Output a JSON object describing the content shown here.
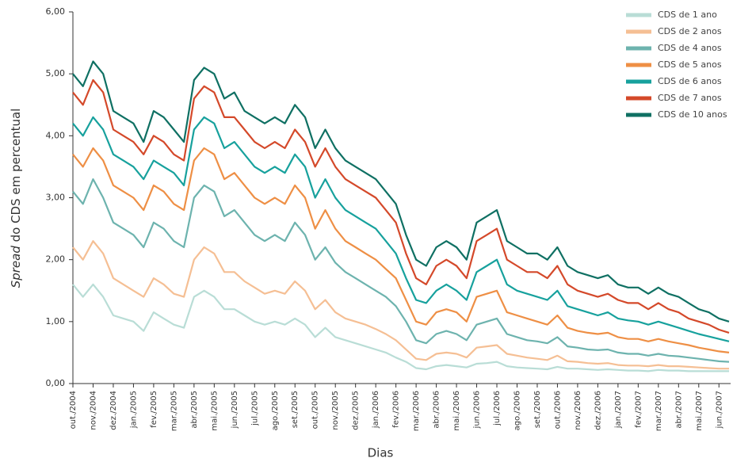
{
  "chart_data": {
    "type": "line",
    "y_label_italic": "Spread",
    "y_label": " do CDS em percentual",
    "x_label": "Dias",
    "categories": [
      "out./2004",
      null,
      "nov./2004",
      null,
      "dez./2004",
      null,
      "jan./2005",
      null,
      "fev./2005",
      null,
      "mar./2005",
      null,
      "abr./2005",
      null,
      "mai./2005",
      null,
      "jun./2005",
      null,
      "jul./2005",
      null,
      "ago./2005",
      null,
      "set./2005",
      null,
      "out./2005",
      null,
      "nov./2005",
      null,
      "dez./2005",
      null,
      "jan./2006",
      null,
      "fev./2006",
      null,
      "mar./2006",
      null,
      "abr./2006",
      null,
      "mai./2006",
      null,
      "jun./2006",
      null,
      "jul./2006",
      null,
      "ago./2006",
      null,
      "set./2006",
      null,
      "out./2006",
      null,
      "nov./2006",
      null,
      "dez./2006",
      null,
      "jan./2007",
      null,
      "fev./2007",
      null,
      "mar./2007",
      null,
      "abr./2007",
      null,
      "mai./2007",
      null,
      "jun./2007",
      null
    ],
    "series": [
      {
        "name": "CDS de 1 ano",
        "color": "#b9ddd6",
        "values": [
          1.6,
          1.4,
          1.6,
          1.4,
          1.1,
          1.05,
          1.0,
          0.85,
          1.15,
          1.05,
          0.95,
          0.9,
          1.4,
          1.5,
          1.4,
          1.2,
          1.2,
          1.1,
          1.0,
          0.95,
          1.0,
          0.95,
          1.05,
          0.95,
          0.75,
          0.9,
          0.75,
          0.7,
          0.65,
          0.6,
          0.55,
          0.5,
          0.42,
          0.35,
          0.25,
          0.23,
          0.28,
          0.3,
          0.28,
          0.26,
          0.32,
          0.33,
          0.35,
          0.28,
          0.26,
          0.25,
          0.24,
          0.23,
          0.27,
          0.24,
          0.24,
          0.23,
          0.22,
          0.23,
          0.22,
          0.21,
          0.21,
          0.2,
          0.22,
          0.21,
          0.21,
          0.2,
          0.2,
          0.2,
          0.2,
          0.2
        ]
      },
      {
        "name": "CDS de 2 anos",
        "color": "#f5bf94",
        "values": [
          2.2,
          2.0,
          2.3,
          2.1,
          1.7,
          1.6,
          1.5,
          1.4,
          1.7,
          1.6,
          1.45,
          1.4,
          2.0,
          2.2,
          2.1,
          1.8,
          1.8,
          1.65,
          1.55,
          1.45,
          1.5,
          1.45,
          1.65,
          1.5,
          1.2,
          1.35,
          1.15,
          1.05,
          1.0,
          0.95,
          0.88,
          0.8,
          0.7,
          0.55,
          0.4,
          0.38,
          0.48,
          0.5,
          0.48,
          0.42,
          0.58,
          0.6,
          0.62,
          0.48,
          0.45,
          0.42,
          0.4,
          0.38,
          0.45,
          0.36,
          0.35,
          0.33,
          0.32,
          0.33,
          0.3,
          0.29,
          0.29,
          0.28,
          0.3,
          0.28,
          0.28,
          0.27,
          0.26,
          0.25,
          0.24,
          0.24
        ]
      },
      {
        "name": "CDS de 4 anos",
        "color": "#6db3ae",
        "values": [
          3.1,
          2.9,
          3.3,
          3.0,
          2.6,
          2.5,
          2.4,
          2.2,
          2.6,
          2.5,
          2.3,
          2.2,
          3.0,
          3.2,
          3.1,
          2.7,
          2.8,
          2.6,
          2.4,
          2.3,
          2.4,
          2.3,
          2.6,
          2.4,
          2.0,
          2.2,
          1.95,
          1.8,
          1.7,
          1.6,
          1.5,
          1.4,
          1.25,
          1.0,
          0.7,
          0.65,
          0.8,
          0.85,
          0.8,
          0.7,
          0.95,
          1.0,
          1.05,
          0.8,
          0.75,
          0.7,
          0.68,
          0.65,
          0.75,
          0.6,
          0.58,
          0.55,
          0.54,
          0.55,
          0.5,
          0.48,
          0.48,
          0.45,
          0.48,
          0.45,
          0.44,
          0.42,
          0.4,
          0.38,
          0.36,
          0.35
        ]
      },
      {
        "name": "CDS de 5 anos",
        "color": "#ee8f45",
        "values": [
          3.7,
          3.5,
          3.8,
          3.6,
          3.2,
          3.1,
          3.0,
          2.8,
          3.2,
          3.1,
          2.9,
          2.8,
          3.6,
          3.8,
          3.7,
          3.3,
          3.4,
          3.2,
          3.0,
          2.9,
          3.0,
          2.9,
          3.2,
          3.0,
          2.5,
          2.8,
          2.5,
          2.3,
          2.2,
          2.1,
          2.0,
          1.85,
          1.7,
          1.35,
          1.0,
          0.95,
          1.15,
          1.2,
          1.15,
          1.0,
          1.4,
          1.45,
          1.5,
          1.15,
          1.1,
          1.05,
          1.0,
          0.95,
          1.1,
          0.9,
          0.85,
          0.82,
          0.8,
          0.82,
          0.75,
          0.72,
          0.72,
          0.68,
          0.72,
          0.68,
          0.65,
          0.62,
          0.58,
          0.55,
          0.52,
          0.5
        ]
      },
      {
        "name": "CDS de 6 anos",
        "color": "#17a19d",
        "values": [
          4.2,
          4.0,
          4.3,
          4.1,
          3.7,
          3.6,
          3.5,
          3.3,
          3.6,
          3.5,
          3.4,
          3.2,
          4.1,
          4.3,
          4.2,
          3.8,
          3.9,
          3.7,
          3.5,
          3.4,
          3.5,
          3.4,
          3.7,
          3.5,
          3.0,
          3.3,
          3.0,
          2.8,
          2.7,
          2.6,
          2.5,
          2.3,
          2.1,
          1.7,
          1.35,
          1.3,
          1.5,
          1.6,
          1.5,
          1.35,
          1.8,
          1.9,
          2.0,
          1.6,
          1.5,
          1.45,
          1.4,
          1.35,
          1.5,
          1.25,
          1.2,
          1.15,
          1.1,
          1.15,
          1.05,
          1.02,
          1.0,
          0.95,
          1.0,
          0.95,
          0.9,
          0.85,
          0.8,
          0.76,
          0.72,
          0.68
        ]
      },
      {
        "name": "CDS de 7 anos",
        "color": "#d4492a",
        "values": [
          4.7,
          4.5,
          4.9,
          4.7,
          4.1,
          4.0,
          3.9,
          3.7,
          4.0,
          3.9,
          3.7,
          3.6,
          4.6,
          4.8,
          4.7,
          4.3,
          4.3,
          4.1,
          3.9,
          3.8,
          3.9,
          3.8,
          4.1,
          3.9,
          3.5,
          3.8,
          3.5,
          3.3,
          3.2,
          3.1,
          3.0,
          2.8,
          2.6,
          2.1,
          1.7,
          1.6,
          1.9,
          2.0,
          1.9,
          1.7,
          2.3,
          2.4,
          2.5,
          2.0,
          1.9,
          1.8,
          1.8,
          1.7,
          1.9,
          1.6,
          1.5,
          1.45,
          1.4,
          1.45,
          1.35,
          1.3,
          1.3,
          1.2,
          1.3,
          1.2,
          1.15,
          1.05,
          1.0,
          0.95,
          0.87,
          0.82
        ]
      },
      {
        "name": "CDS de 10 anos",
        "color": "#0f7063",
        "values": [
          5.0,
          4.8,
          5.2,
          5.0,
          4.4,
          4.3,
          4.2,
          3.9,
          4.4,
          4.3,
          4.1,
          3.9,
          4.9,
          5.1,
          5.0,
          4.6,
          4.7,
          4.4,
          4.3,
          4.2,
          4.3,
          4.2,
          4.5,
          4.3,
          3.8,
          4.1,
          3.8,
          3.6,
          3.5,
          3.4,
          3.3,
          3.1,
          2.9,
          2.4,
          2.0,
          1.9,
          2.2,
          2.3,
          2.2,
          2.0,
          2.6,
          2.7,
          2.8,
          2.3,
          2.2,
          2.1,
          2.1,
          2.0,
          2.2,
          1.9,
          1.8,
          1.75,
          1.7,
          1.75,
          1.6,
          1.55,
          1.55,
          1.45,
          1.55,
          1.45,
          1.4,
          1.3,
          1.2,
          1.15,
          1.05,
          1.0
        ]
      }
    ],
    "ylim": [
      0,
      6
    ],
    "yticks": [
      {
        "value": 0,
        "label": "0,00"
      },
      {
        "value": 1,
        "label": "1,00"
      },
      {
        "value": 2,
        "label": "2,00"
      },
      {
        "value": 3,
        "label": "3,00"
      },
      {
        "value": 4,
        "label": "4,00"
      },
      {
        "value": 5,
        "label": "5,00"
      },
      {
        "value": 6,
        "label": "6,00"
      }
    ],
    "legend": "top-right"
  }
}
